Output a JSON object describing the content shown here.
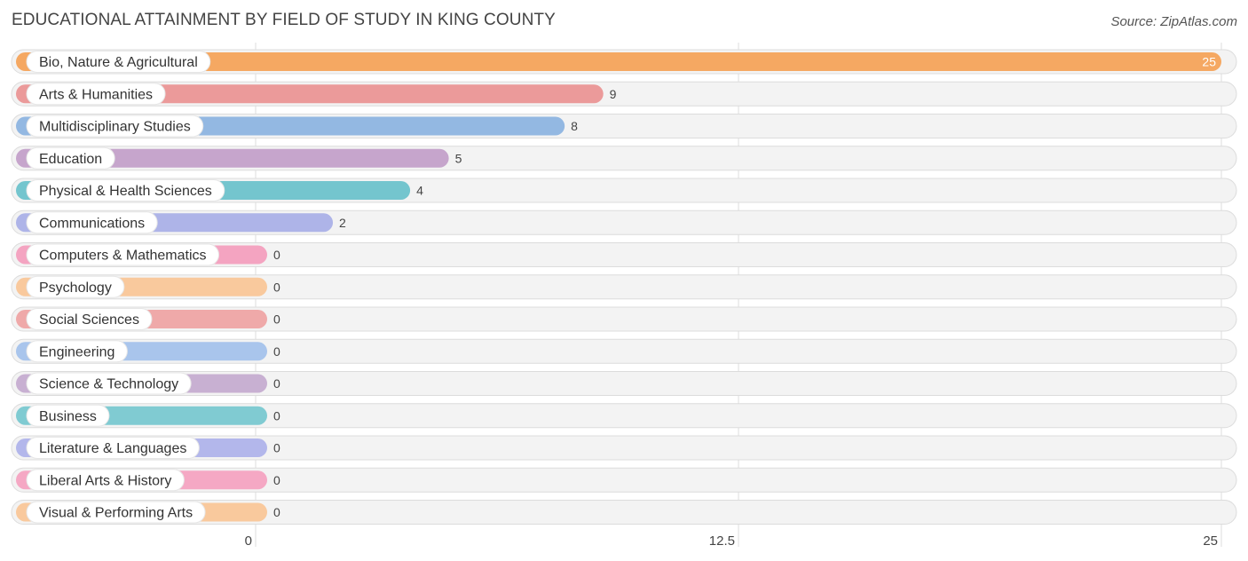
{
  "title": "EDUCATIONAL ATTAINMENT BY FIELD OF STUDY IN KING COUNTY",
  "source": "Source: ZipAtlas.com",
  "chart_data": {
    "type": "bar",
    "orientation": "horizontal",
    "title": "EDUCATIONAL ATTAINMENT BY FIELD OF STUDY IN KING COUNTY",
    "xlim": [
      0,
      25
    ],
    "x_ticks": [
      0,
      12.5,
      25
    ],
    "x_tick_labels": [
      "0",
      "12.5",
      "25"
    ],
    "grid": true,
    "categories": [
      "Bio, Nature & Agricultural",
      "Arts & Humanities",
      "Multidisciplinary Studies",
      "Education",
      "Physical & Health Sciences",
      "Communications",
      "Computers & Mathematics",
      "Psychology",
      "Social Sciences",
      "Engineering",
      "Science & Technology",
      "Business",
      "Literature & Languages",
      "Liberal Arts & History",
      "Visual & Performing Arts"
    ],
    "values": [
      25,
      9,
      8,
      5,
      4,
      2,
      0,
      0,
      0,
      0,
      0,
      0,
      0,
      0,
      0
    ],
    "value_labels": [
      "25",
      "9",
      "8",
      "5",
      "4",
      "2",
      "0",
      "0",
      "0",
      "0",
      "0",
      "0",
      "0",
      "0",
      "0"
    ],
    "colors": [
      "#f5a862",
      "#eb9a9a",
      "#93b8e2",
      "#c6a5cc",
      "#74c5ce",
      "#aeb4e8",
      "#f4a4c1",
      "#f9c99d",
      "#efa9a9",
      "#a9c5ec",
      "#c8b0d2",
      "#80cbd2",
      "#b3b7eb",
      "#f5a8c4",
      "#f9c99d"
    ]
  }
}
